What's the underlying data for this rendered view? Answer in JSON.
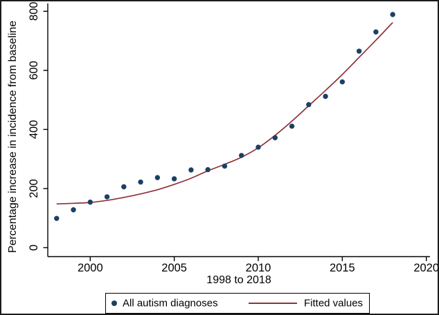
{
  "figure": {
    "colors": {
      "scatter_marker": "#1b4064",
      "fit_line": "#8d303a",
      "axis": "#000000",
      "text": "#000000",
      "frame": "#1c1c1c",
      "background": "#ffffff"
    }
  },
  "chart_data": {
    "type": "scatter",
    "title": "",
    "xlabel": "1998 to 2018",
    "ylabel": "Percentage increase in incidence from baseline",
    "x": [
      1998,
      1999,
      2000,
      2001,
      2002,
      2003,
      2004,
      2005,
      2006,
      2007,
      2008,
      2009,
      2010,
      2011,
      2012,
      2013,
      2014,
      2015,
      2016,
      2017,
      2018
    ],
    "series": [
      {
        "name": "All autism diagnoses",
        "type": "scatter",
        "values": [
          99,
          128,
          154,
          172,
          206,
          222,
          237,
          233,
          263,
          264,
          276,
          312,
          340,
          372,
          411,
          484,
          512,
          561,
          665,
          730,
          789
        ]
      },
      {
        "name": "Fitted values",
        "type": "line",
        "values": [
          148,
          150,
          153,
          160,
          170,
          182,
          196,
          214,
          235,
          260,
          282,
          306,
          338,
          380,
          428,
          480,
          532,
          586,
          644,
          702,
          762
        ]
      }
    ],
    "xlim": [
      1997.5,
      2020.2
    ],
    "ylim": [
      0,
      800
    ],
    "x_ticks": [
      2000,
      2005,
      2010,
      2015,
      2020
    ],
    "y_ticks": [
      0,
      200,
      400,
      600,
      800
    ],
    "grid": false,
    "legend_position": "bottom"
  }
}
